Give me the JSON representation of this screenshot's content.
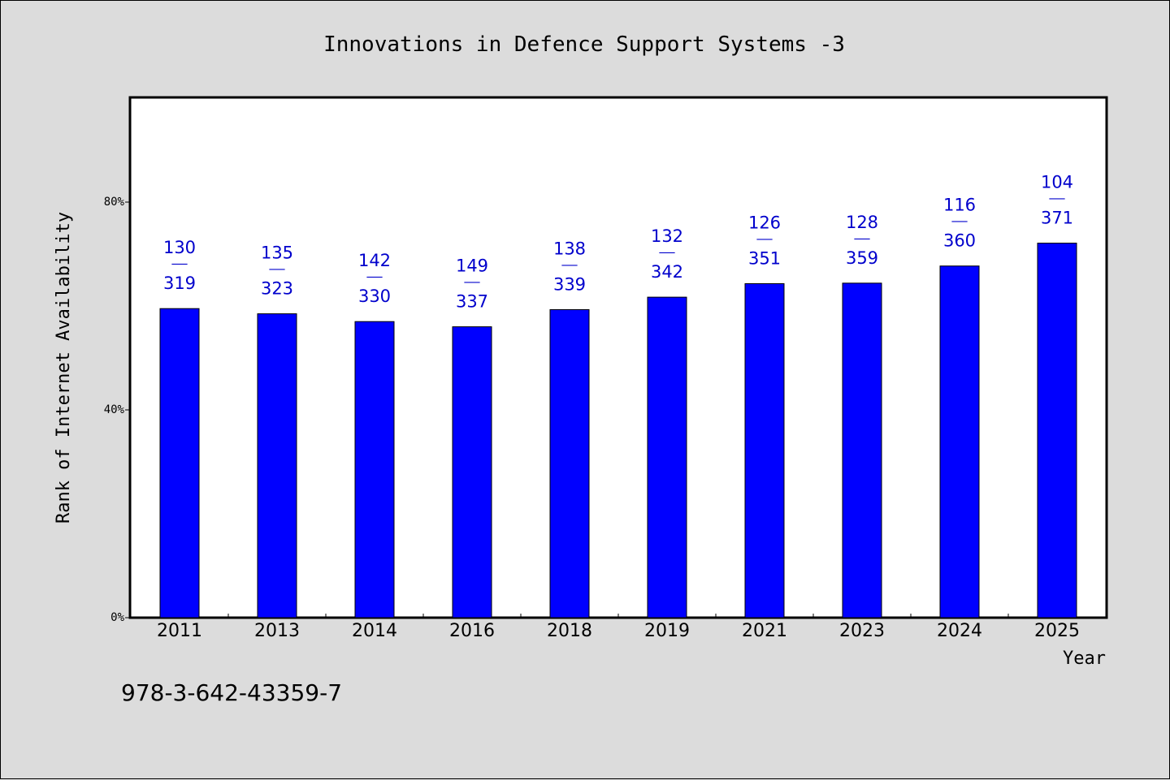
{
  "chart_data": {
    "type": "bar",
    "title": "Innovations in Defence Support Systems -3",
    "xlabel": "Year",
    "ylabel": "Rank of Internet Availability",
    "categories": [
      "2011",
      "2013",
      "2014",
      "2016",
      "2018",
      "2019",
      "2021",
      "2023",
      "2024",
      "2025"
    ],
    "values": [
      0.595,
      0.585,
      0.57,
      0.56,
      0.593,
      0.617,
      0.643,
      0.644,
      0.677,
      0.721
    ],
    "bar_labels": [
      {
        "top": "130",
        "bottom": "319"
      },
      {
        "top": "135",
        "bottom": "323"
      },
      {
        "top": "142",
        "bottom": "330"
      },
      {
        "top": "149",
        "bottom": "337"
      },
      {
        "top": "138",
        "bottom": "339"
      },
      {
        "top": "132",
        "bottom": "342"
      },
      {
        "top": "126",
        "bottom": "351"
      },
      {
        "top": "128",
        "bottom": "359"
      },
      {
        "top": "116",
        "bottom": "360"
      },
      {
        "top": "104",
        "bottom": "371"
      }
    ],
    "label_separator": "——",
    "y_ticks": [
      {
        "value": 0,
        "label": "0%"
      },
      {
        "value": 0.4,
        "label": "40%"
      },
      {
        "value": 0.8,
        "label": "80%"
      }
    ],
    "ylim": [
      0,
      1.0
    ],
    "grid": false,
    "bar_color": "#0000ff",
    "label_color": "#0000cc"
  },
  "footnote": "978-3-642-43359-7"
}
